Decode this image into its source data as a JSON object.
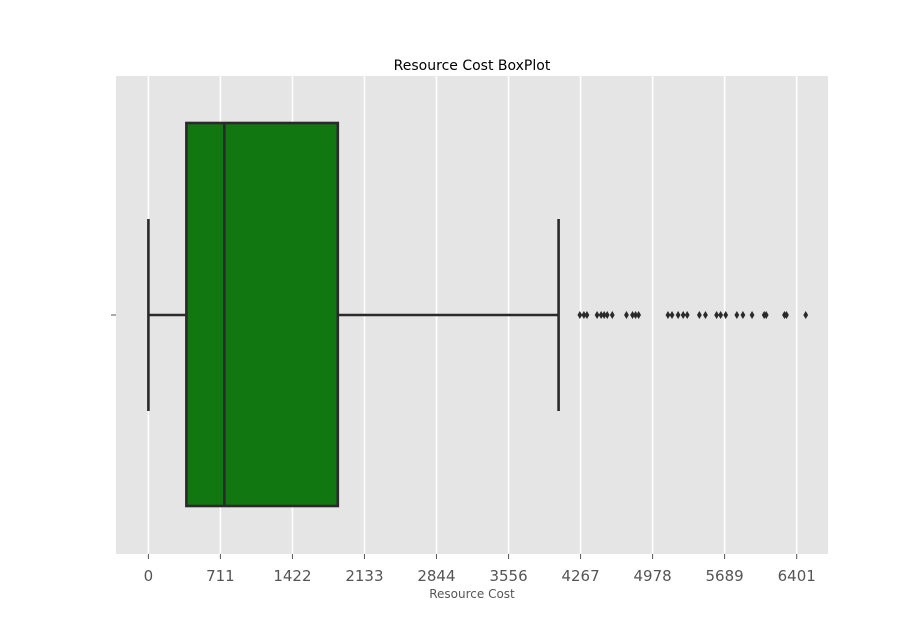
{
  "chart_data": {
    "type": "box",
    "title": "Resource Cost BoxPlot",
    "xlabel": "Resource Cost",
    "ylabel": "",
    "orientation": "horizontal",
    "xlim": [
      -320,
      6710
    ],
    "x_ticks": [
      0,
      711,
      1422,
      2133,
      2844,
      3556,
      4267,
      4978,
      5689,
      6401
    ],
    "x_tick_labels": [
      "0",
      "711",
      "1422",
      "2133",
      "2844",
      "3556",
      "4267",
      "4978",
      "5689",
      "6401"
    ],
    "grid": true,
    "legend": "none",
    "series": [
      {
        "min": 0,
        "q1": 375,
        "median": 750,
        "q3": 1870,
        "max": 4050,
        "outliers": [
          4260,
          4300,
          4330,
          4430,
          4470,
          4500,
          4530,
          4580,
          4720,
          4780,
          4810,
          4840,
          5130,
          5170,
          5230,
          5280,
          5320,
          5440,
          5500,
          5610,
          5650,
          5700,
          5810,
          5870,
          5960,
          6080,
          6100,
          6280,
          6300,
          6490
        ]
      }
    ],
    "colors": {
      "box_fill": "#117711",
      "edge": "#2a2a2a",
      "plot_bg": "#e5e5e5",
      "grid": "#ffffff",
      "tick_label": "#555555",
      "axis_label": "#555555",
      "title": "#000000"
    }
  }
}
